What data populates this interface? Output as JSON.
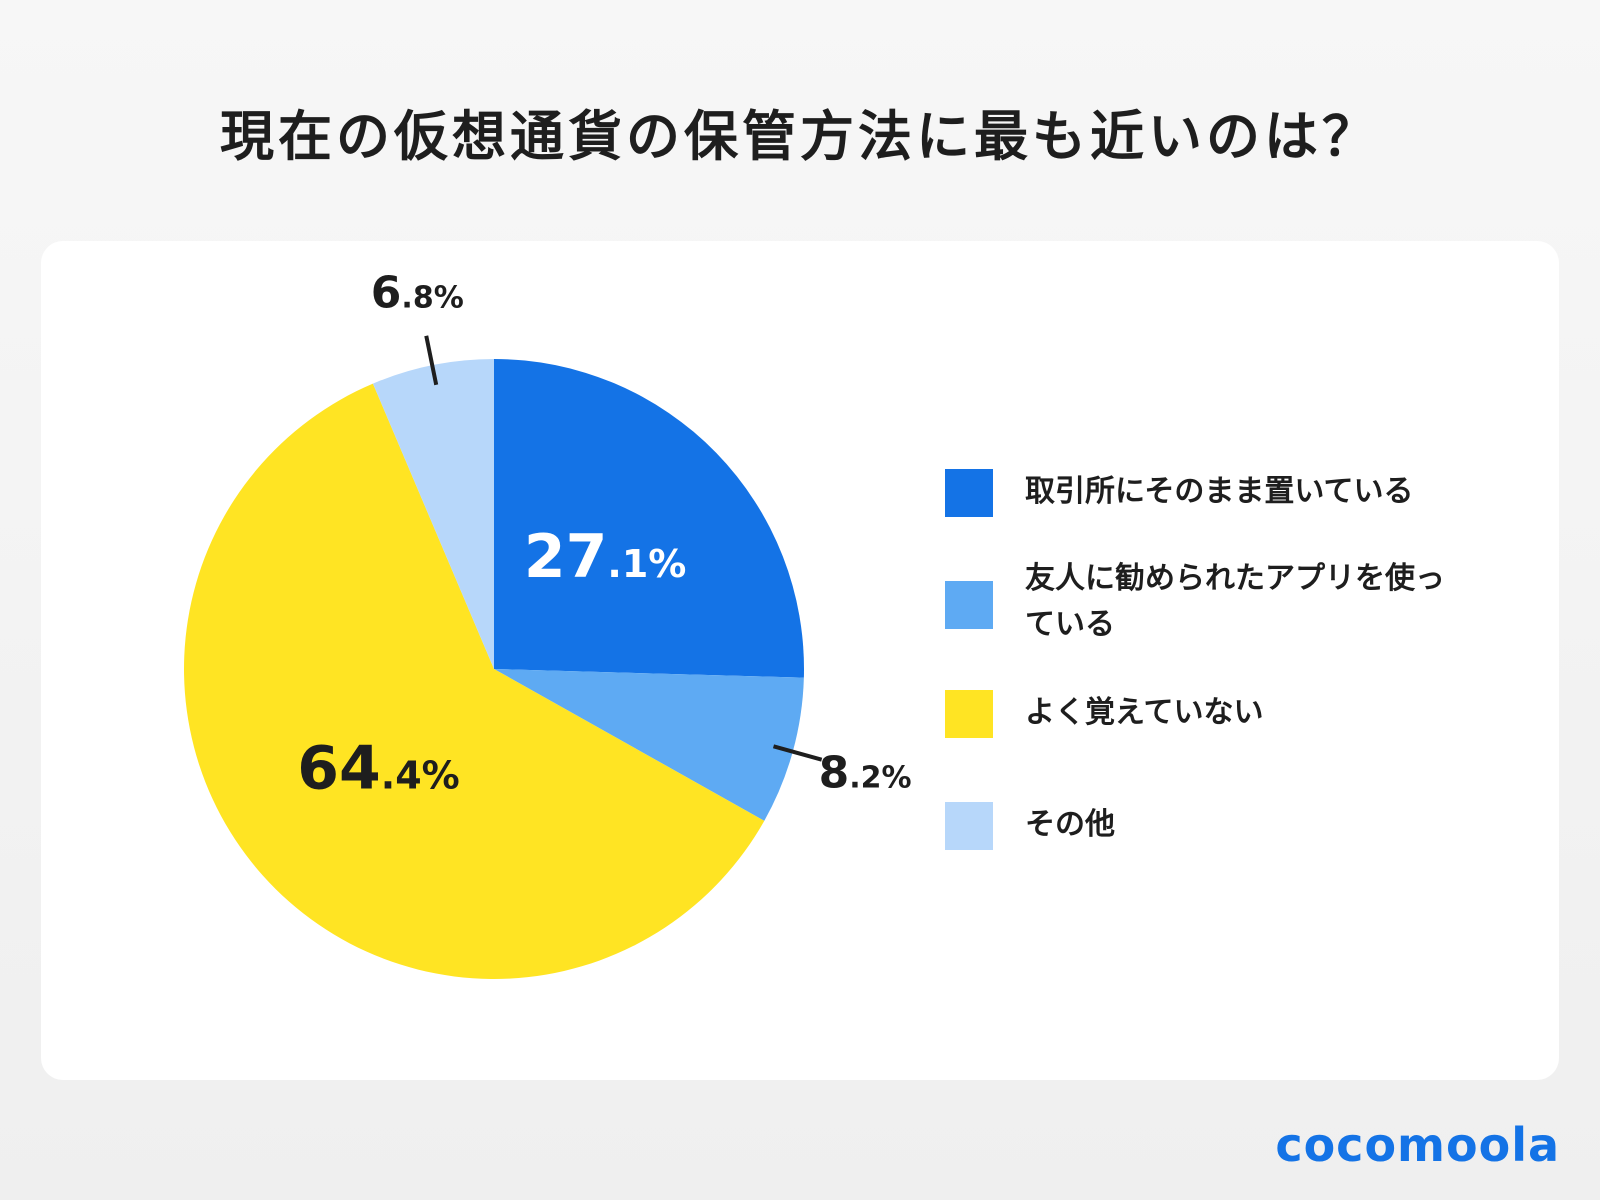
{
  "title": "現在の仮想通貨の保管方法に最も近いのは？",
  "logo": "cocomoola",
  "chart_data": {
    "type": "pie",
    "title": "現在の仮想通貨の保管方法に最も近いのは？",
    "legend_position": "right",
    "slices": [
      {
        "label": "取引所にそのまま置いている",
        "value": 27.1,
        "display_int": "27",
        "display_dec": ".1%",
        "color": "#1473e6"
      },
      {
        "label": "友人に勧められたアプリを使っている",
        "value": 8.2,
        "display_int": "8",
        "display_dec": ".2%",
        "color": "#5eaaf3"
      },
      {
        "label": "よく覚えていない",
        "value": 64.4,
        "display_int": "64",
        "display_dec": ".4%",
        "color": "#ffe423"
      },
      {
        "label": "その他",
        "value": 6.8,
        "display_int": "6",
        "display_dec": ".8%",
        "color": "#b7d7fa"
      }
    ]
  }
}
